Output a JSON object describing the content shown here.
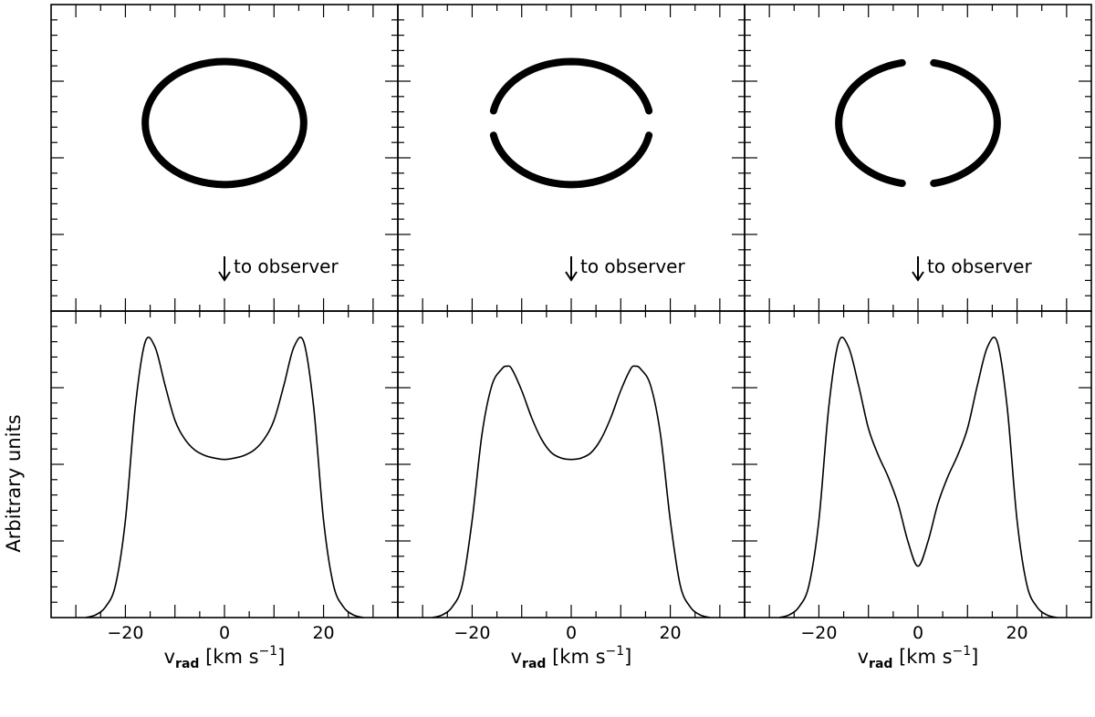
{
  "chart_data": [
    {
      "type": "line",
      "kind": "ring-geometry",
      "ring": {
        "radius_x": 16,
        "radius_y": 14,
        "gaps": []
      },
      "arrow": {
        "label": "to observer",
        "direction": "down"
      },
      "axes": {
        "xlim": [
          -35,
          35
        ],
        "ylim": [
          -30,
          30
        ],
        "tick_labels": false
      }
    },
    {
      "type": "line",
      "kind": "ring-geometry",
      "ring": {
        "radius_x": 16,
        "radius_y": 14,
        "gaps": [
          "left",
          "right"
        ]
      },
      "arrow": {
        "label": "to observer",
        "direction": "down"
      },
      "axes": {
        "xlim": [
          -35,
          35
        ],
        "ylim": [
          -30,
          30
        ],
        "tick_labels": false
      }
    },
    {
      "type": "line",
      "kind": "ring-geometry",
      "ring": {
        "radius_x": 16,
        "radius_y": 14,
        "gaps": [
          "top",
          "bottom"
        ]
      },
      "arrow": {
        "label": "to observer",
        "direction": "down"
      },
      "axes": {
        "xlim": [
          -35,
          35
        ],
        "ylim": [
          -30,
          30
        ],
        "tick_labels": false
      }
    },
    {
      "type": "line",
      "kind": "line-profile",
      "xlabel": "v_rad [km s^-1]",
      "ylabel": "Arbitrary units",
      "xlim": [
        -35,
        35
      ],
      "ylim": [
        0,
        1.1
      ],
      "xticks": [
        -20,
        0,
        20
      ],
      "x": [
        -28,
        -26,
        -24,
        -22,
        -20,
        -18,
        -16,
        -14,
        -12,
        -10,
        -8,
        -6,
        -4,
        -2,
        0,
        2,
        4,
        6,
        8,
        10,
        12,
        14,
        16,
        18,
        20,
        22,
        24,
        26,
        28
      ],
      "y": [
        0,
        0.01,
        0.04,
        0.12,
        0.36,
        0.78,
        1.02,
        1.0,
        0.86,
        0.73,
        0.66,
        0.62,
        0.6,
        0.59,
        0.585,
        0.59,
        0.6,
        0.62,
        0.66,
        0.73,
        0.86,
        1.0,
        1.02,
        0.78,
        0.36,
        0.12,
        0.04,
        0.01,
        0
      ]
    },
    {
      "type": "line",
      "kind": "line-profile",
      "xlabel": "v_rad [km s^-1]",
      "xlim": [
        -35,
        35
      ],
      "ylim": [
        0,
        1.1
      ],
      "xticks": [
        -20,
        0,
        20
      ],
      "x": [
        -28,
        -26,
        -24,
        -22,
        -20,
        -18,
        -16,
        -14,
        -13,
        -12,
        -10,
        -8,
        -6,
        -4,
        -2,
        0,
        2,
        4,
        6,
        8,
        10,
        12,
        13,
        14,
        16,
        18,
        20,
        22,
        24,
        26,
        28
      ],
      "y": [
        0,
        0.01,
        0.04,
        0.12,
        0.36,
        0.68,
        0.86,
        0.92,
        0.93,
        0.92,
        0.84,
        0.74,
        0.66,
        0.61,
        0.59,
        0.585,
        0.59,
        0.61,
        0.66,
        0.74,
        0.84,
        0.92,
        0.93,
        0.92,
        0.86,
        0.68,
        0.36,
        0.12,
        0.04,
        0.01,
        0
      ]
    },
    {
      "type": "line",
      "kind": "line-profile",
      "xlabel": "v_rad [km s^-1]",
      "xlim": [
        -35,
        35
      ],
      "ylim": [
        0,
        1.1
      ],
      "xticks": [
        -20,
        0,
        20
      ],
      "x": [
        -28,
        -26,
        -24,
        -22,
        -20,
        -18,
        -16,
        -14,
        -12,
        -10,
        -8,
        -6,
        -4,
        -2,
        0,
        2,
        4,
        6,
        8,
        10,
        12,
        14,
        16,
        18,
        20,
        22,
        24,
        26,
        28
      ],
      "y": [
        0,
        0.01,
        0.04,
        0.12,
        0.36,
        0.78,
        1.02,
        1.0,
        0.86,
        0.7,
        0.6,
        0.52,
        0.42,
        0.28,
        0.19,
        0.28,
        0.42,
        0.52,
        0.6,
        0.7,
        0.86,
        1.0,
        1.02,
        0.78,
        0.36,
        0.12,
        0.04,
        0.01,
        0
      ]
    }
  ]
}
